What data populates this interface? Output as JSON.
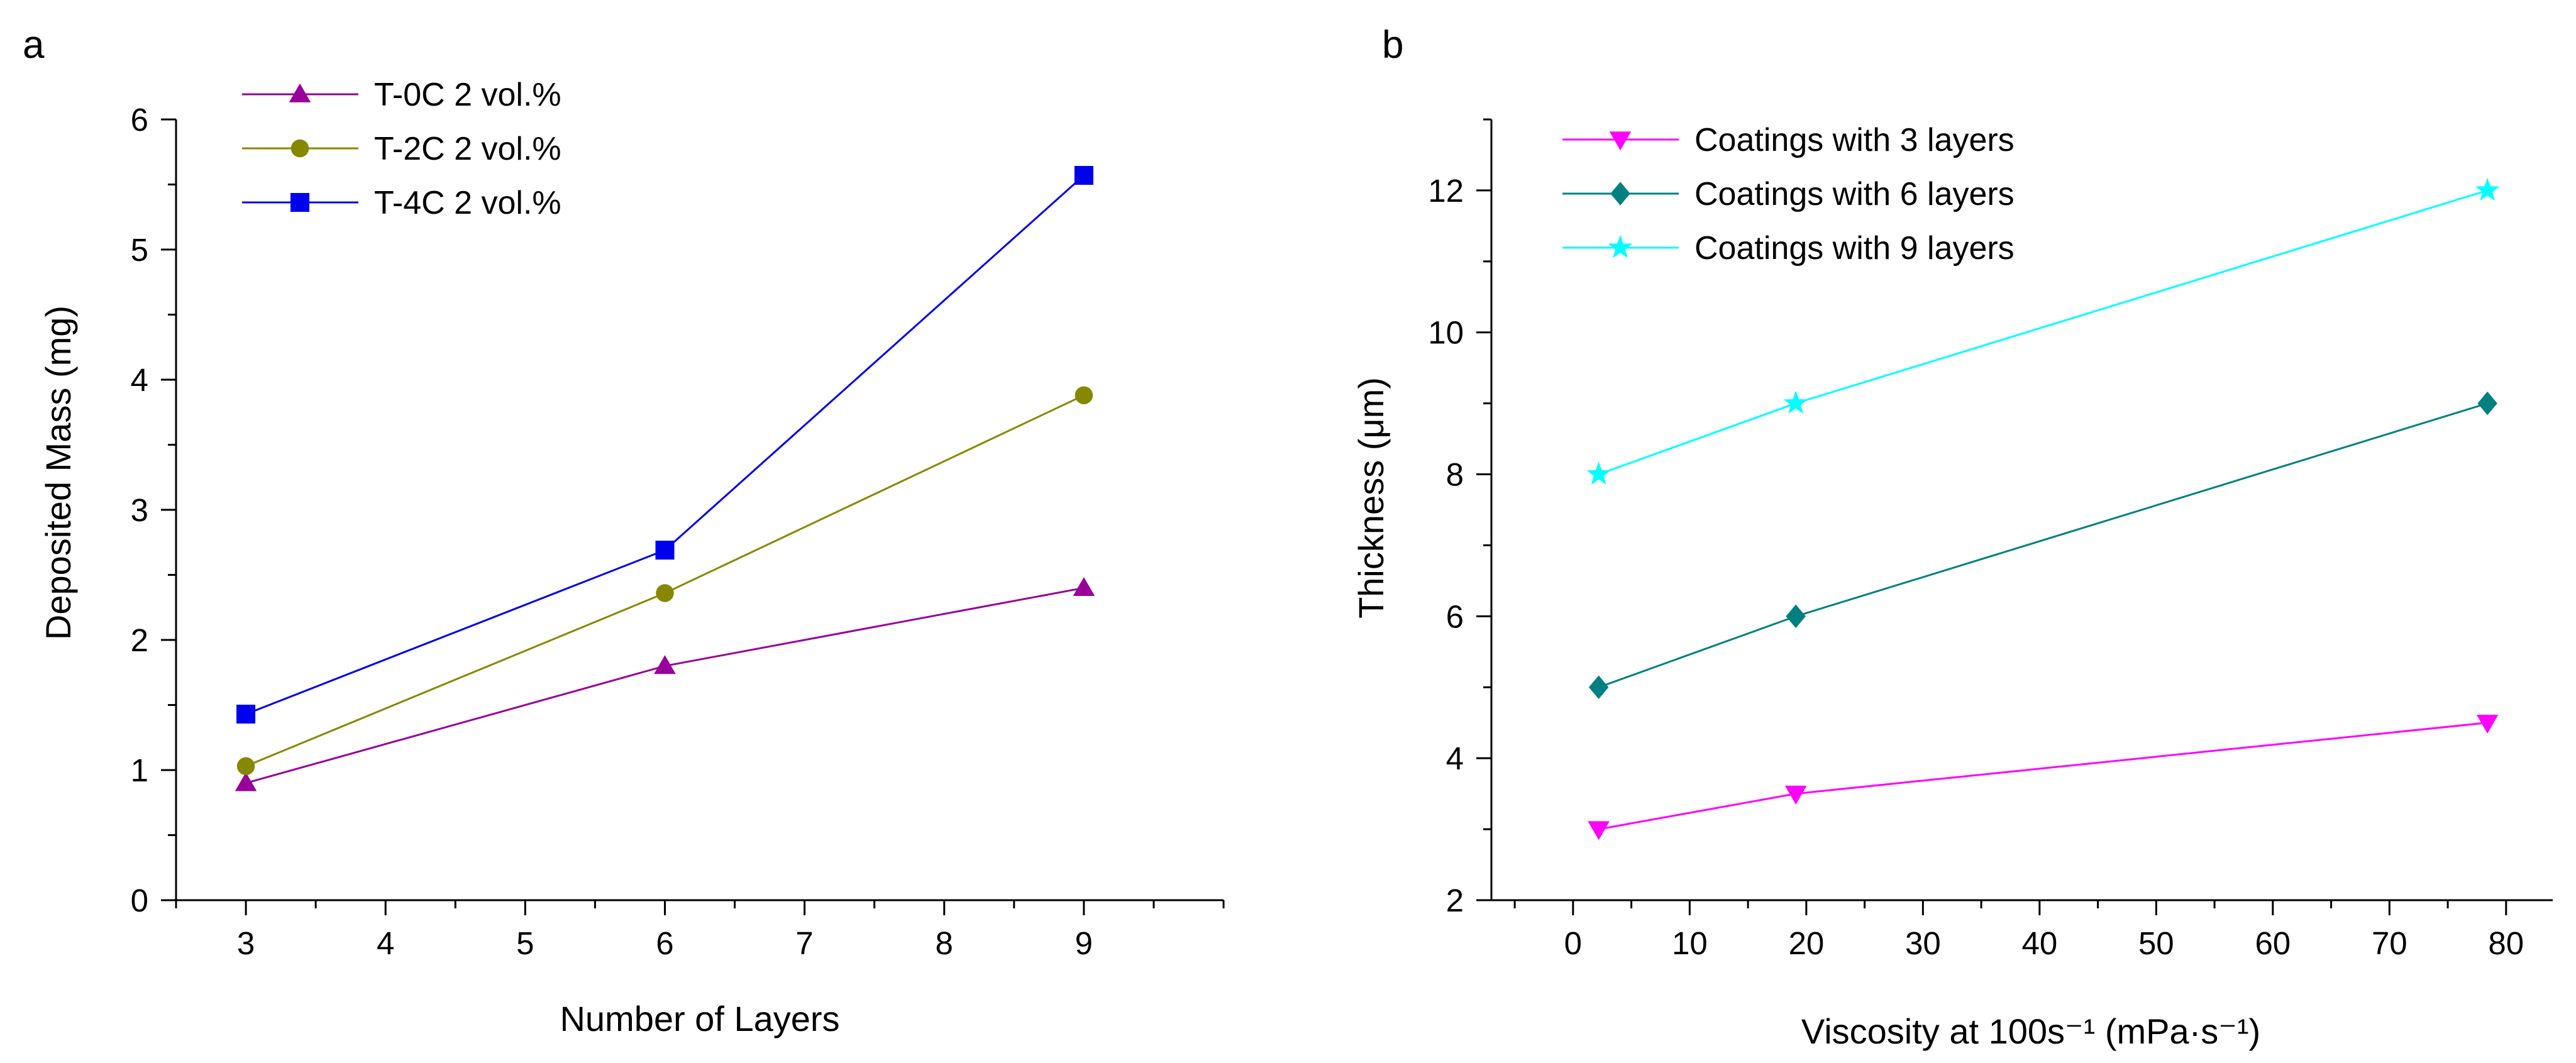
{
  "chart_data": [
    {
      "panel_label": "a",
      "type": "line",
      "xlabel": "Number of Layers",
      "ylabel": "Deposited Mass (mg)",
      "xlim": [
        2.5,
        10.0
      ],
      "ylim": [
        0,
        6
      ],
      "xticks": [
        3,
        4,
        5,
        6,
        7,
        8,
        9
      ],
      "yticks": [
        0,
        1,
        2,
        3,
        4,
        5,
        6
      ],
      "legend_position": "top-left",
      "grid": false,
      "x": [
        3,
        6,
        9
      ],
      "series": [
        {
          "name": "T-0C 2 vol.%",
          "values": [
            0.9,
            1.8,
            2.4
          ],
          "color": "#990099",
          "marker": "triangle-up"
        },
        {
          "name": "T-2C 2 vol.%",
          "values": [
            1.03,
            2.36,
            3.88
          ],
          "color": "#888800",
          "marker": "circle"
        },
        {
          "name": "T-4C 2 vol.%",
          "values": [
            1.43,
            2.69,
            5.57
          ],
          "color": "#0000ee",
          "marker": "square"
        }
      ]
    },
    {
      "panel_label": "b",
      "type": "line",
      "xlabel": "Viscosity at 100s⁻¹ (mPa·s⁻¹)",
      "ylabel": "Thickness (μm)",
      "xlim": [
        -7,
        84
      ],
      "ylim": [
        2,
        13
      ],
      "xticks": [
        0,
        10,
        20,
        30,
        40,
        50,
        60,
        70,
        80
      ],
      "yticks": [
        2,
        4,
        6,
        8,
        10,
        12
      ],
      "legend_position": "top-left",
      "grid": false,
      "x": [
        2.2,
        19.1,
        78.4
      ],
      "series": [
        {
          "name": "Coatings with 3 layers",
          "values": [
            3.0,
            3.5,
            4.5
          ],
          "color": "#ff00ff",
          "marker": "triangle-down"
        },
        {
          "name": "Coatings with 6 layers",
          "values": [
            5.0,
            6.0,
            9.0
          ],
          "color": "#008080",
          "marker": "diamond"
        },
        {
          "name": "Coatings with 9 layers",
          "values": [
            8.0,
            9.0,
            12.0
          ],
          "color": "#00ffff",
          "marker": "star"
        }
      ]
    }
  ]
}
